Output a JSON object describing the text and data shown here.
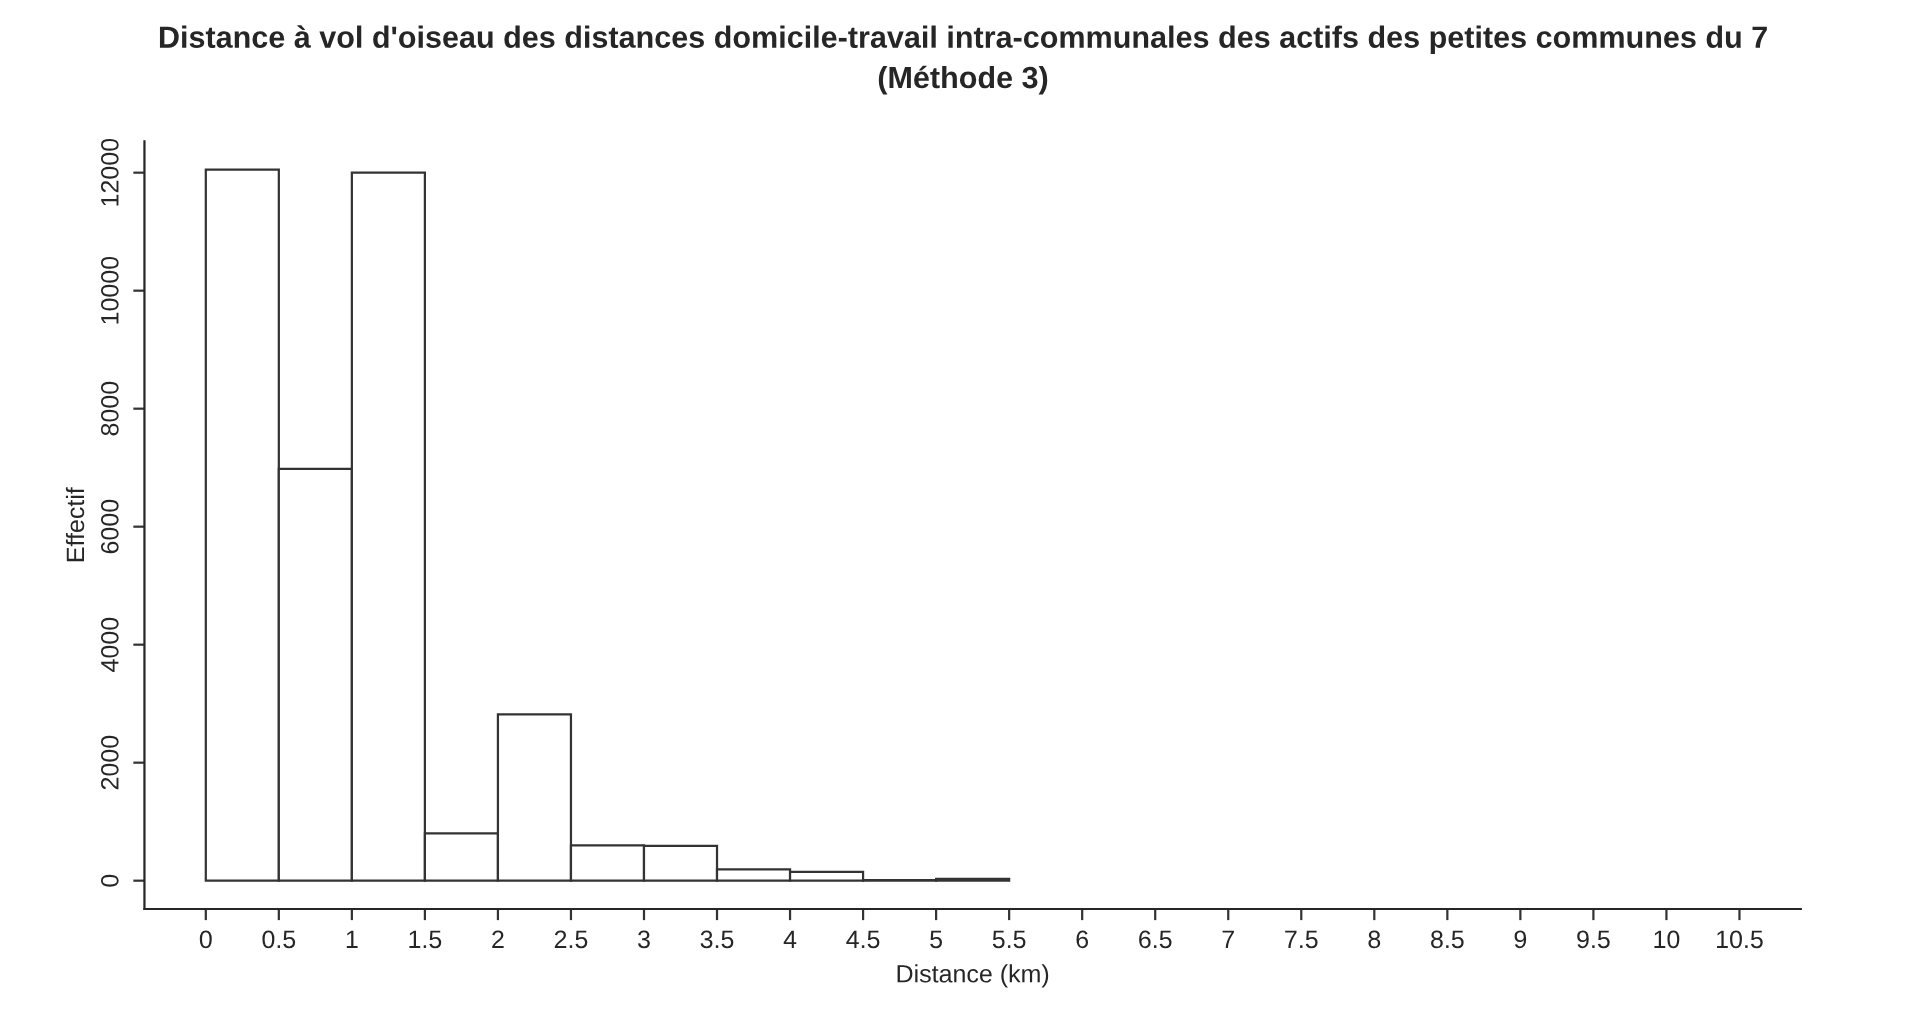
{
  "chart_data": {
    "type": "histogram",
    "title": "Distance à vol d'oiseau des distances domicile-travail intra-communales des actifs des petites communes du 7",
    "subtitle": "(Méthode 3)",
    "xlabel": "Distance (km)",
    "ylabel": "Effectif",
    "bins": [
      0,
      0.5,
      1,
      1.5,
      2,
      2.5,
      3,
      3.5,
      4,
      4.5,
      5,
      5.5,
      6,
      6.5,
      7,
      7.5,
      8,
      8.5,
      9,
      9.5,
      10,
      10.5
    ],
    "values": [
      12050,
      6980,
      12000,
      800,
      2820,
      600,
      590,
      190,
      150,
      10,
      30,
      0,
      0,
      0,
      0,
      0,
      0,
      0,
      0,
      0,
      0
    ],
    "color": "#ffffff",
    "xlim": [
      -0.42,
      10.92
    ],
    "ylim": [
      -480,
      12530
    ],
    "xticks": [
      0,
      0.5,
      1,
      1.5,
      2,
      2.5,
      3,
      3.5,
      4,
      4.5,
      5,
      5.5,
      6,
      6.5,
      7,
      7.5,
      8,
      8.5,
      9,
      9.5,
      10,
      10.5
    ],
    "yticks": [
      0,
      2000,
      4000,
      6000,
      8000,
      10000,
      12000
    ],
    "grid": false,
    "legend": false
  }
}
